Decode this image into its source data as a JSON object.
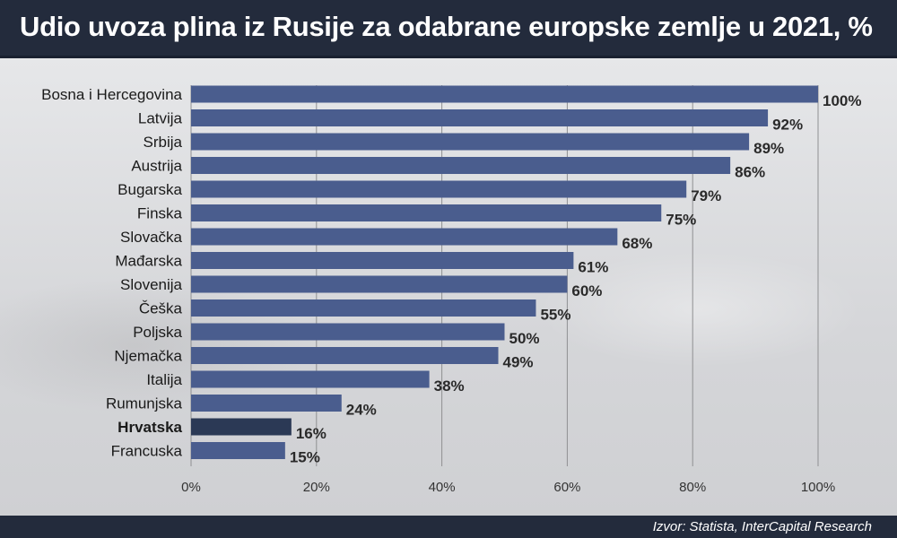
{
  "title": "Udio uvoza plina iz Rusije za odabrane europske zemlje u 2021, %",
  "source": "Izvor: Statista, InterCapital Research",
  "colors": {
    "bar": "#4a5d8e",
    "bar_highlight": "#2b3955",
    "header": "#232b3c",
    "grid": "#8f9092"
  },
  "chart_data": {
    "type": "bar",
    "orientation": "horizontal",
    "title": "Udio uvoza plina iz Rusije za odabrane europske zemlje u 2021, %",
    "categories": [
      "Bosna i Hercegovina",
      "Latvija",
      "Srbija",
      "Austrija",
      "Bugarska",
      "Finska",
      "Slovačka",
      "Mađarska",
      "Slovenija",
      "Češka",
      "Poljska",
      "Njemačka",
      "Italija",
      "Rumunjska",
      "Hrvatska",
      "Francuska"
    ],
    "values": [
      100,
      92,
      89,
      86,
      79,
      75,
      68,
      61,
      60,
      55,
      50,
      49,
      38,
      24,
      16,
      15
    ],
    "value_labels": [
      "100%",
      "92%",
      "89%",
      "86%",
      "79%",
      "75%",
      "68%",
      "61%",
      "60%",
      "55%",
      "50%",
      "49%",
      "38%",
      "24%",
      "16%",
      "15%"
    ],
    "highlight": "Hrvatska",
    "xlim": [
      0,
      100
    ],
    "xticks": [
      0,
      20,
      40,
      60,
      80,
      100
    ],
    "xtick_labels": [
      "0%",
      "20%",
      "40%",
      "60%",
      "80%",
      "100%"
    ],
    "grid": true,
    "legend": "none"
  }
}
